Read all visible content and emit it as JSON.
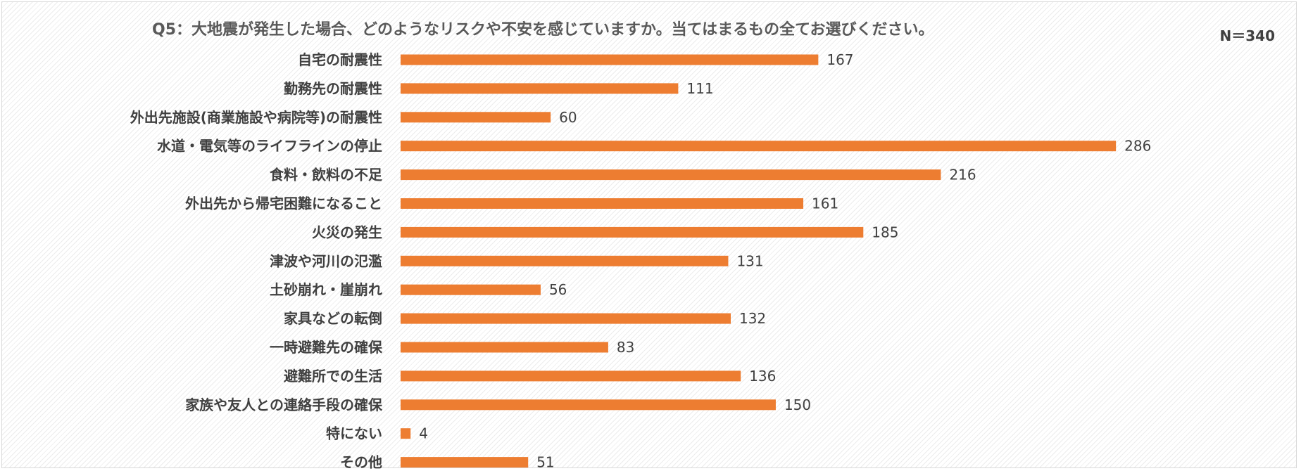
{
  "chart_data": {
    "type": "bar",
    "orientation": "horizontal",
    "title": "Q5：大地震が発生した場合、どのようなリスクや不安を感じていますか。当てはまるもの全てお選びください。",
    "sample_size": "N＝340",
    "categories": [
      "自宅の耐震性",
      "勤務先の耐震性",
      "外出先施設(商業施設や病院等)の耐震性",
      "水道・電気等のライフラインの停止",
      "食料・飲料の不足",
      "外出先から帰宅困難になること",
      "火災の発生",
      "津波や河川の氾濫",
      "土砂崩れ・崖崩れ",
      "家具などの転倒",
      "一時避難先の確保",
      "避難所での生活",
      "家族や友人との連絡手段の確保",
      "特にない",
      "その他"
    ],
    "values": [
      167,
      111,
      60,
      286,
      216,
      161,
      185,
      131,
      56,
      132,
      83,
      136,
      150,
      4,
      51
    ],
    "bar_color": "#ed7d31",
    "xlim": [
      0,
      340
    ],
    "grid": false,
    "legend": "none",
    "data_labels": true
  }
}
